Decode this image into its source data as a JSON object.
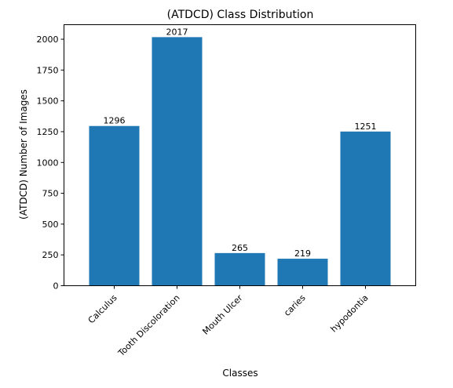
{
  "chart_data": {
    "type": "bar",
    "title": "(ATDCD) Class Distribution",
    "xlabel": "Classes",
    "ylabel": "(ATDCD) Number of Images",
    "categories": [
      "Calculus",
      "Tooth Discoloration",
      "Mouth Ulcer",
      "caries",
      "hypodontia"
    ],
    "values": [
      1296,
      2017,
      265,
      219,
      1251
    ],
    "data_labels": [
      "1296",
      "2017",
      "265",
      "219",
      "1251"
    ],
    "ylim": [
      0,
      2118
    ],
    "yticks": [
      0,
      250,
      500,
      750,
      1000,
      1250,
      1500,
      1750,
      2000
    ],
    "ytick_labels": [
      "0",
      "250",
      "500",
      "750",
      "1000",
      "1250",
      "1500",
      "1750",
      "2000"
    ],
    "grid": false,
    "bar_color": "#1f77b4"
  }
}
